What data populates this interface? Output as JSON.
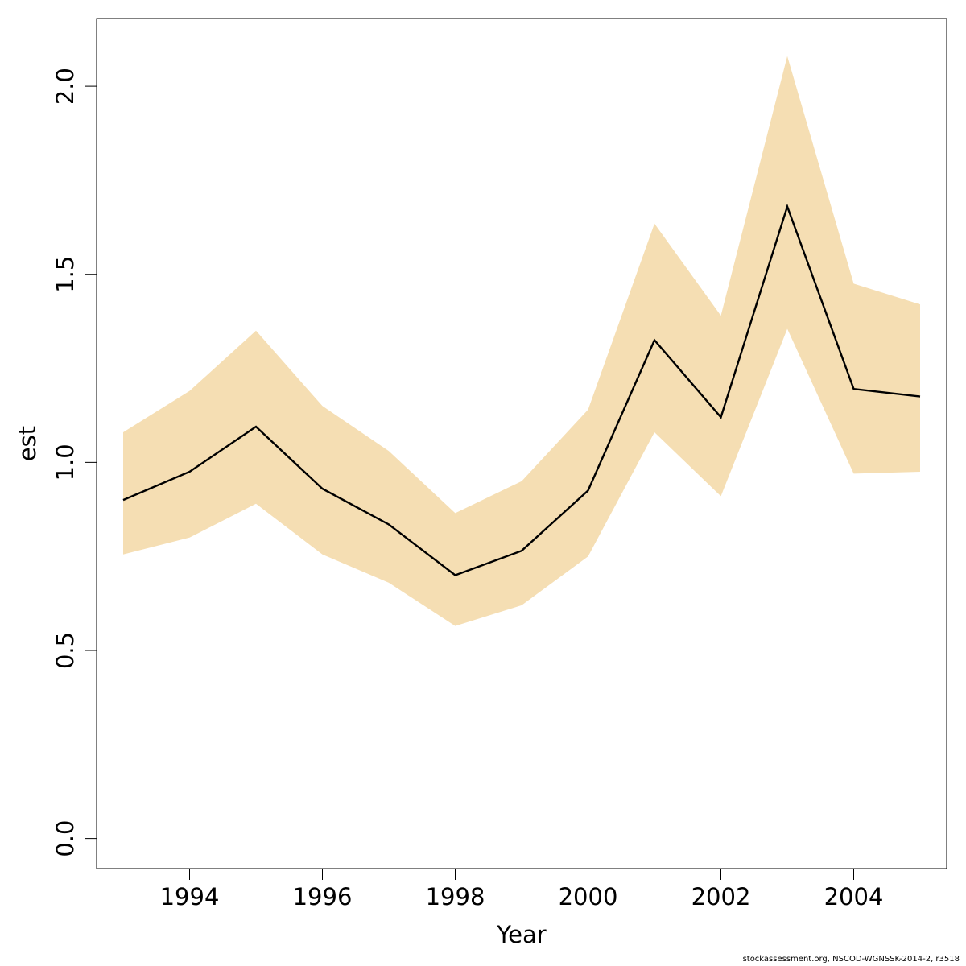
{
  "chart_data": {
    "type": "line",
    "title": "",
    "xlabel": "Year",
    "ylabel": "est",
    "x": [
      1993,
      1994,
      1995,
      1996,
      1997,
      1998,
      1999,
      2000,
      2001,
      2002,
      2003,
      2004,
      2005
    ],
    "series": [
      {
        "values": [
          0.9,
          0.975,
          1.095,
          0.93,
          0.835,
          0.7,
          0.765,
          0.925,
          1.325,
          1.12,
          1.68,
          1.195,
          1.175
        ]
      }
    ],
    "band": {
      "lower": [
        0.755,
        0.8,
        0.89,
        0.755,
        0.68,
        0.565,
        0.62,
        0.75,
        1.08,
        0.91,
        1.355,
        0.97,
        0.975
      ],
      "upper": [
        1.08,
        1.19,
        1.35,
        1.15,
        1.03,
        0.865,
        0.95,
        1.14,
        1.635,
        1.39,
        2.08,
        1.475,
        1.42
      ],
      "color": "#F5DEB3"
    },
    "line_color": "#000000",
    "xlim": [
      1992.6,
      2005.4
    ],
    "ylim": [
      -0.08,
      2.18
    ],
    "xticks": [
      1994,
      1996,
      1998,
      2000,
      2002,
      2004
    ],
    "yticks": [
      0.0,
      0.5,
      1.0,
      1.5,
      2.0
    ],
    "ytick_labels": [
      "0.0",
      "0.5",
      "1.0",
      "1.5",
      "2.0"
    ],
    "grid": false,
    "legend": "none"
  },
  "footer": {
    "text": "stockassessment.org, NSCOD-WGNSSK-2014-2, r3518"
  }
}
